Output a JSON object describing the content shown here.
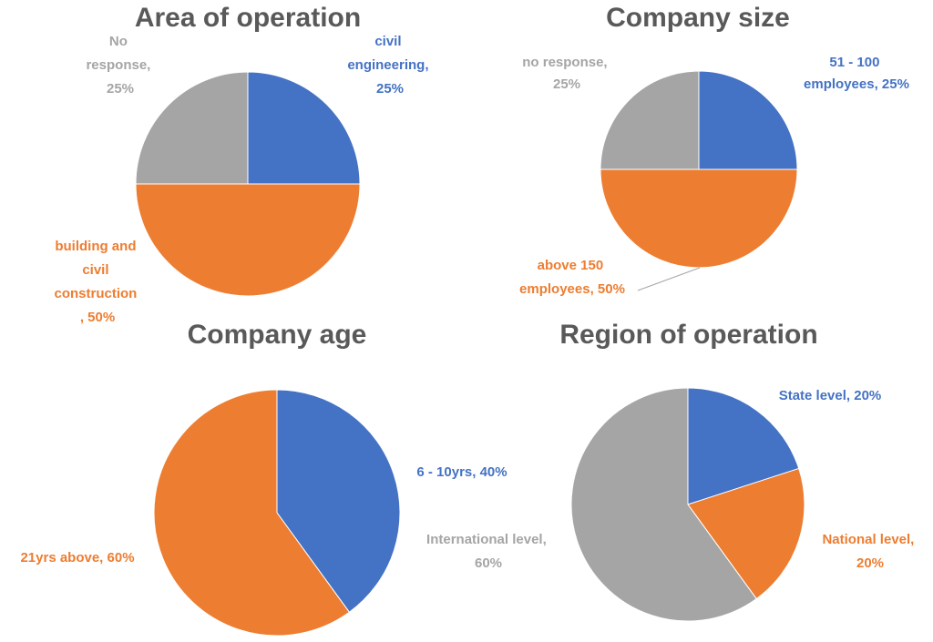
{
  "colors": {
    "blue": "#4472c4",
    "orange": "#ed7d31",
    "gray": "#a5a5a5",
    "title": "#595959"
  },
  "chart_data": [
    {
      "type": "pie",
      "title": "Area of operation",
      "slices": [
        {
          "label": "civil engineering",
          "value": 25,
          "color": "#4472c4",
          "label_lines": [
            "civil",
            "engineering,",
            "25%"
          ]
        },
        {
          "label": "building and civil construction",
          "value": 50,
          "color": "#ed7d31",
          "label_lines": [
            "building and",
            "civil",
            "construction",
            ", 50%"
          ]
        },
        {
          "label": "No response",
          "value": 25,
          "color": "#a5a5a5",
          "label_lines": [
            "No",
            "response,",
            "25%"
          ]
        }
      ]
    },
    {
      "type": "pie",
      "title": "Company size",
      "slices": [
        {
          "label": "51 - 100 employees",
          "value": 25,
          "color": "#4472c4",
          "label_lines": [
            "51 - 100",
            "employees, 25%"
          ]
        },
        {
          "label": "above 150 employees",
          "value": 50,
          "color": "#ed7d31",
          "label_lines": [
            "above 150",
            "employees, 50%"
          ]
        },
        {
          "label": "no response",
          "value": 25,
          "color": "#a5a5a5",
          "label_lines": [
            "no response,",
            "25%"
          ]
        }
      ]
    },
    {
      "type": "pie",
      "title": "Company age",
      "slices": [
        {
          "label": "6 - 10yrs",
          "value": 40,
          "color": "#4472c4",
          "label_lines": [
            "6 - 10yrs, 40%"
          ]
        },
        {
          "label": "21yrs above",
          "value": 60,
          "color": "#ed7d31",
          "label_lines": [
            "21yrs above, 60%"
          ]
        }
      ]
    },
    {
      "type": "pie",
      "title": "Region of operation",
      "slices": [
        {
          "label": "State level",
          "value": 20,
          "color": "#4472c4",
          "label_lines": [
            "State level, 20%"
          ]
        },
        {
          "label": "National level",
          "value": 20,
          "color": "#ed7d31",
          "label_lines": [
            "National level,",
            "20%"
          ]
        },
        {
          "label": "International level",
          "value": 60,
          "color": "#a5a5a5",
          "label_lines": [
            "International level,",
            "60%"
          ]
        }
      ]
    }
  ]
}
